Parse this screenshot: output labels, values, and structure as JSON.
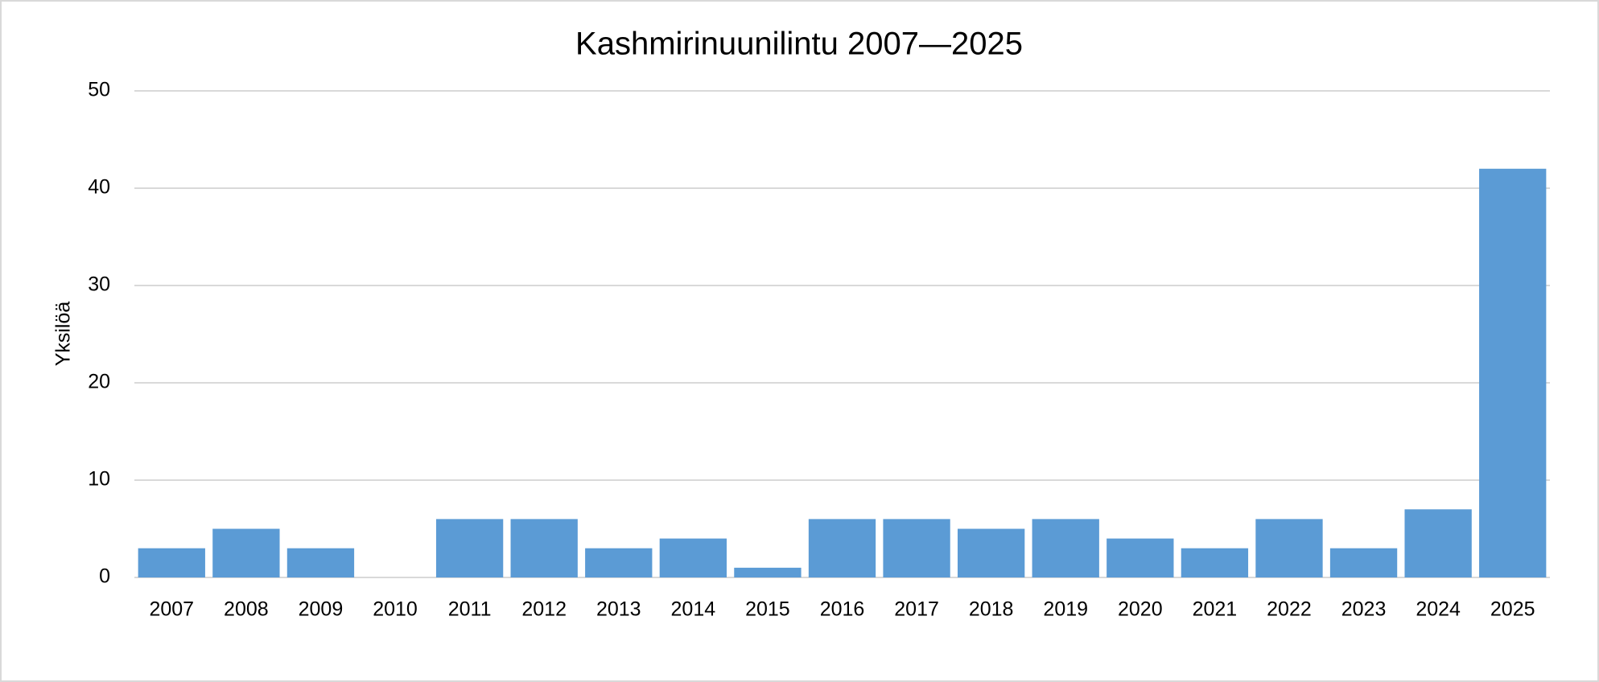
{
  "chart_data": {
    "type": "bar",
    "title": "Kashmirinuunilintu 2007—2025",
    "ylabel": "Yksilöä",
    "categories": [
      "2007",
      "2008",
      "2009",
      "2010",
      "2011",
      "2012",
      "2013",
      "2014",
      "2015",
      "2016",
      "2017",
      "2018",
      "2019",
      "2020",
      "2021",
      "2022",
      "2023",
      "2024",
      "2025"
    ],
    "values": [
      3,
      5,
      3,
      0,
      6,
      6,
      3,
      4,
      1,
      6,
      6,
      5,
      6,
      4,
      3,
      6,
      3,
      7,
      42
    ],
    "color": "#5b9bd5",
    "ylim": [
      0,
      50
    ],
    "yticks": [
      0,
      10,
      20,
      30,
      40,
      50
    ],
    "grid": true
  }
}
